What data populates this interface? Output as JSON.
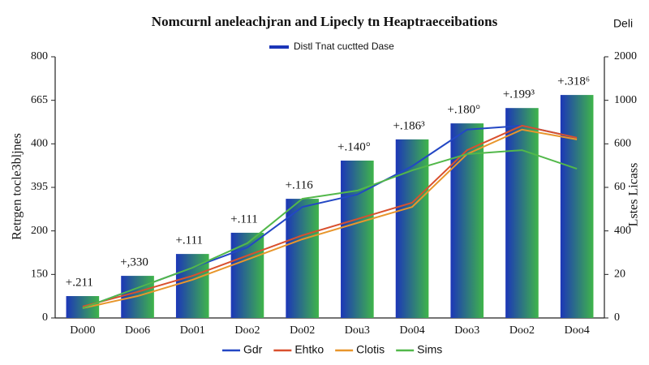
{
  "chart_data": {
    "type": "bar",
    "title": "Nomcurnl aneleachjran and Lipecly tn Heaptraeceibations",
    "corner_label": "Deli",
    "y_label": "Retrgen tocle3bljnes",
    "y2_label": "Lstes Licass",
    "categories": [
      "Do00",
      "Doo6",
      "Do01",
      "Doo2",
      "Do02",
      "Dou3",
      "Do04",
      "Doo3",
      "Doo2",
      "Doo4"
    ],
    "ylim": [
      0,
      800
    ],
    "yticks": [
      0,
      {
        "value": 133.33,
        "label": "150"
      },
      {
        "value": 266.67,
        "label": "200"
      },
      {
        "value": 400,
        "label": "395"
      },
      {
        "value": 533.33,
        "label": "400"
      },
      {
        "value": 666.67,
        "label": "665"
      },
      800
    ],
    "y2lim": [
      0,
      2000
    ],
    "y2ticks": [
      0,
      {
        "value": 333.33,
        "label": "20"
      },
      {
        "value": 666.67,
        "label": "400"
      },
      {
        "value": 1000,
        "label": "60"
      },
      {
        "value": 1333.33,
        "label": "600"
      },
      {
        "value": 1666.67,
        "label": "1000"
      },
      2000
    ],
    "series": [
      {
        "name": "Distl Tnat cuctted Dase",
        "type": "bar",
        "color": "#1c36b8",
        "color2": "#3fb54a",
        "values": [
          67,
          129,
          196,
          261,
          365,
          482,
          547,
          596,
          643,
          683
        ],
        "annotations": [
          "+.211",
          "+,330",
          "+.111",
          "+.111",
          "+.116",
          "+.140°",
          "+.186³",
          "+.180°",
          "+.199³",
          "+.318⁶"
        ]
      },
      {
        "name": "Gdr",
        "type": "line",
        "color": "#2347c4",
        "values": [
          30,
          92,
          154,
          216,
          340,
          378,
          465,
          577,
          589,
          552
        ]
      },
      {
        "name": "Ehtko",
        "type": "line",
        "color": "#d9502e",
        "values": [
          35,
          80,
          129,
          191,
          253,
          303,
          353,
          514,
          589,
          552
        ]
      },
      {
        "name": "Clotis",
        "type": "line",
        "color": "#e8962c",
        "values": [
          30,
          67,
          117,
          179,
          241,
          291,
          340,
          502,
          577,
          547
        ]
      },
      {
        "name": "Sims",
        "type": "line",
        "color": "#52b84a",
        "values": [
          30,
          92,
          154,
          229,
          365,
          390,
          452,
          502,
          514,
          457
        ]
      }
    ]
  }
}
